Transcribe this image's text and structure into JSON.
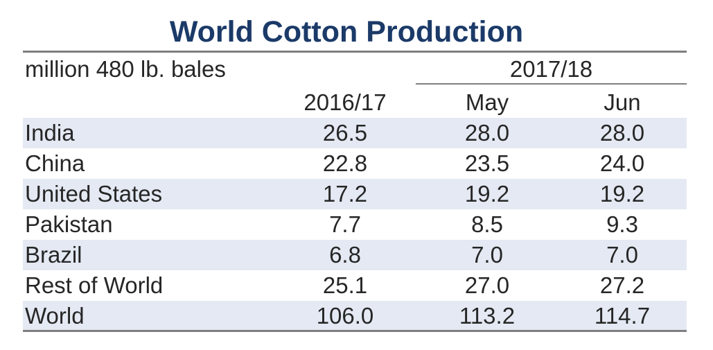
{
  "colors": {
    "title": "#1b3a68",
    "band": "#e4e9f3",
    "rule": "#7f7f7f",
    "text": "#262626"
  },
  "chart_data": {
    "type": "table",
    "title": "World Cotton Production",
    "unit_label": "million 480 lb. bales",
    "group_header": "2017/18",
    "columns": [
      "2016/17",
      "May",
      "Jun"
    ],
    "rows": [
      {
        "label": "India",
        "values": [
          "26.5",
          "28.0",
          "28.0"
        ]
      },
      {
        "label": "China",
        "values": [
          "22.8",
          "23.5",
          "24.0"
        ]
      },
      {
        "label": "United States",
        "values": [
          "17.2",
          "19.2",
          "19.2"
        ]
      },
      {
        "label": "Pakistan",
        "values": [
          "7.7",
          "8.5",
          "9.3"
        ]
      },
      {
        "label": "Brazil",
        "values": [
          "6.8",
          "7.0",
          "7.0"
        ]
      },
      {
        "label": "Rest of World",
        "values": [
          "25.1",
          "27.0",
          "27.2"
        ]
      },
      {
        "label": "World",
        "values": [
          "106.0",
          "113.2",
          "114.7"
        ]
      }
    ]
  }
}
